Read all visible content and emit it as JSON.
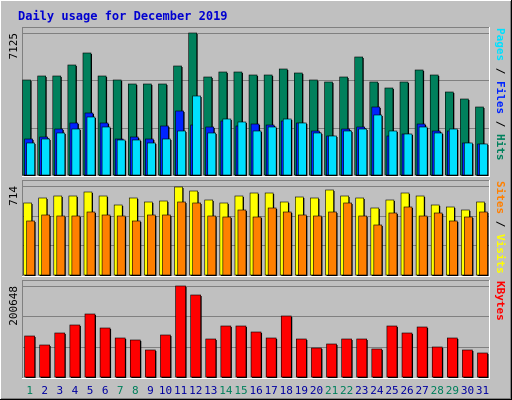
{
  "chart_data": {
    "type": "bar",
    "title": "Daily usage for December 2019",
    "categories": [
      "1",
      "2",
      "3",
      "4",
      "5",
      "6",
      "7",
      "8",
      "9",
      "10",
      "11",
      "12",
      "13",
      "14",
      "15",
      "16",
      "17",
      "18",
      "19",
      "20",
      "21",
      "22",
      "23",
      "24",
      "25",
      "26",
      "27",
      "28",
      "29",
      "30",
      "31"
    ],
    "weekend_days": [
      "1",
      "7",
      "8",
      "14",
      "15",
      "21",
      "22",
      "28",
      "29"
    ],
    "colors": {
      "background": "#c0c0c0",
      "title": "#0000d0",
      "hits": "#00805c",
      "files": "#0024ff",
      "pages": "#00e0ff",
      "visits": "#ffff00",
      "sites": "#ff8000",
      "kbytes": "#ff0000",
      "weekend_label": "#00805c",
      "weekday_label": "#0000a0",
      "axis_label": "#000000"
    },
    "panels": [
      {
        "id": "hits-files-pages",
        "ymax_label": "7125",
        "ymax": 7125,
        "legend": [
          {
            "text": "Pages",
            "color": "#00e0ff"
          },
          {
            "text": " / ",
            "color": "#000000"
          },
          {
            "text": "Files",
            "color": "#0024ff"
          },
          {
            "text": " / ",
            "color": "#000000"
          },
          {
            "text": "Hits",
            "color": "#00805c"
          }
        ],
        "series": [
          {
            "name": "Hits",
            "color": "#00805c",
            "values": [
              4754,
              4944,
              4944,
              5544,
              6144,
              4944,
              4744,
              4544,
              4544,
              4544,
              5474,
              7125,
              4924,
              5174,
              5174,
              5034,
              5034,
              5324,
              5094,
              4754,
              4664,
              4914,
              5924,
              4644,
              4374,
              4664,
              5244,
              5034,
              4144,
              3794,
              3404
            ]
          },
          {
            "name": "Files",
            "color": "#0024ff",
            "values": [
              1824,
              1924,
              2324,
              2624,
              3124,
              2624,
              1824,
              1924,
              1824,
              2474,
              3224,
              2524,
              2414,
              2714,
              2474,
              2564,
              2524,
              2714,
              2614,
              2224,
              1964,
              2324,
              2424,
              3414,
              1974,
              2074,
              2564,
              2214,
              2214,
              1624,
              1554
            ]
          },
          {
            "name": "Pages",
            "color": "#00e0ff",
            "values": [
              1624,
              1824,
              2124,
              2324,
              2934,
              2424,
              1754,
              1754,
              1624,
              1824,
              2224,
              3974,
              2124,
              2824,
              2674,
              2224,
              2424,
              2824,
              2624,
              2124,
              1934,
              2224,
              2324,
              3024,
              2224,
              2054,
              2424,
              2124,
              2324,
              1624,
              1564
            ]
          }
        ]
      },
      {
        "id": "visits-sites",
        "ymax_label": "714",
        "ymax": 714,
        "legend": [
          {
            "text": "Sites",
            "color": "#ff8000"
          },
          {
            "text": " / ",
            "color": "#000000"
          },
          {
            "text": "Visits",
            "color": "#ffff00"
          }
        ],
        "series": [
          {
            "name": "Visits",
            "color": "#ffff00",
            "values": [
              574,
              614,
              634,
              634,
              664,
              634,
              564,
              614,
              584,
              594,
              704,
              674,
              604,
              574,
              634,
              654,
              654,
              584,
              624,
              614,
              684,
              634,
              614,
              534,
              604,
              654,
              634,
              564,
              544,
              524,
              584
            ]
          },
          {
            "name": "Sites",
            "color": "#ff8000",
            "values": [
              434,
              484,
              474,
              474,
              504,
              484,
              474,
              434,
              484,
              484,
              584,
              574,
              474,
              464,
              524,
              464,
              534,
              504,
              484,
              474,
              504,
              574,
              474,
              404,
              494,
              544,
              474,
              494,
              434,
              464,
              504
            ]
          }
        ]
      },
      {
        "id": "kbytes",
        "ymax_label": "200648",
        "ymax": 200648,
        "legend": [
          {
            "text": "KBytes",
            "color": "#ff0000"
          }
        ],
        "series": [
          {
            "name": "KBytes",
            "color": "#ff0000",
            "values": [
              91000,
              71000,
              98000,
              114000,
              139000,
              107000,
              87000,
              81000,
              59000,
              92000,
              200648,
              181000,
              83000,
              112000,
              112000,
              100000,
              86000,
              135000,
              84000,
              65000,
              73000,
              84000,
              84000,
              62000,
              112000,
              98000,
              111000,
              67000,
              85000,
              59000,
              53000
            ]
          }
        ]
      }
    ]
  }
}
